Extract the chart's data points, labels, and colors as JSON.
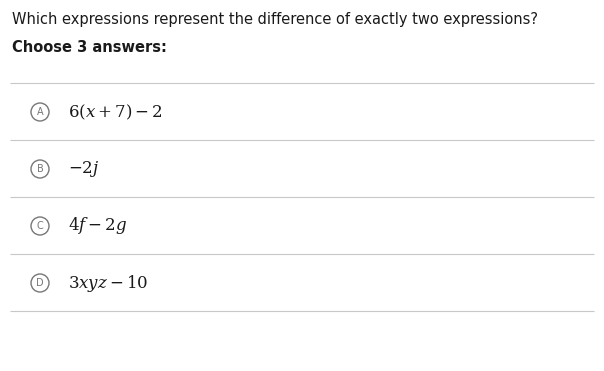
{
  "title": "Which expressions represent the difference of exactly two expressions?",
  "subtitle": "Choose 3 answers:",
  "background_color": "#ffffff",
  "title_fontsize": 10.5,
  "subtitle_fontsize": 10.5,
  "options": [
    {
      "label": "A",
      "text": "$6(x + 7) - 2$"
    },
    {
      "label": "B",
      "text": "$-2j$"
    },
    {
      "label": "C",
      "text": "$4f - 2g$"
    },
    {
      "label": "D",
      "text": "$3xyz - 10$"
    }
  ],
  "divider_color": "#c8c8c8",
  "circle_color": "#777777",
  "text_color": "#1a1a1a",
  "option_text_fontsize": 12,
  "fig_width": 6.04,
  "fig_height": 3.71,
  "dpi": 100
}
